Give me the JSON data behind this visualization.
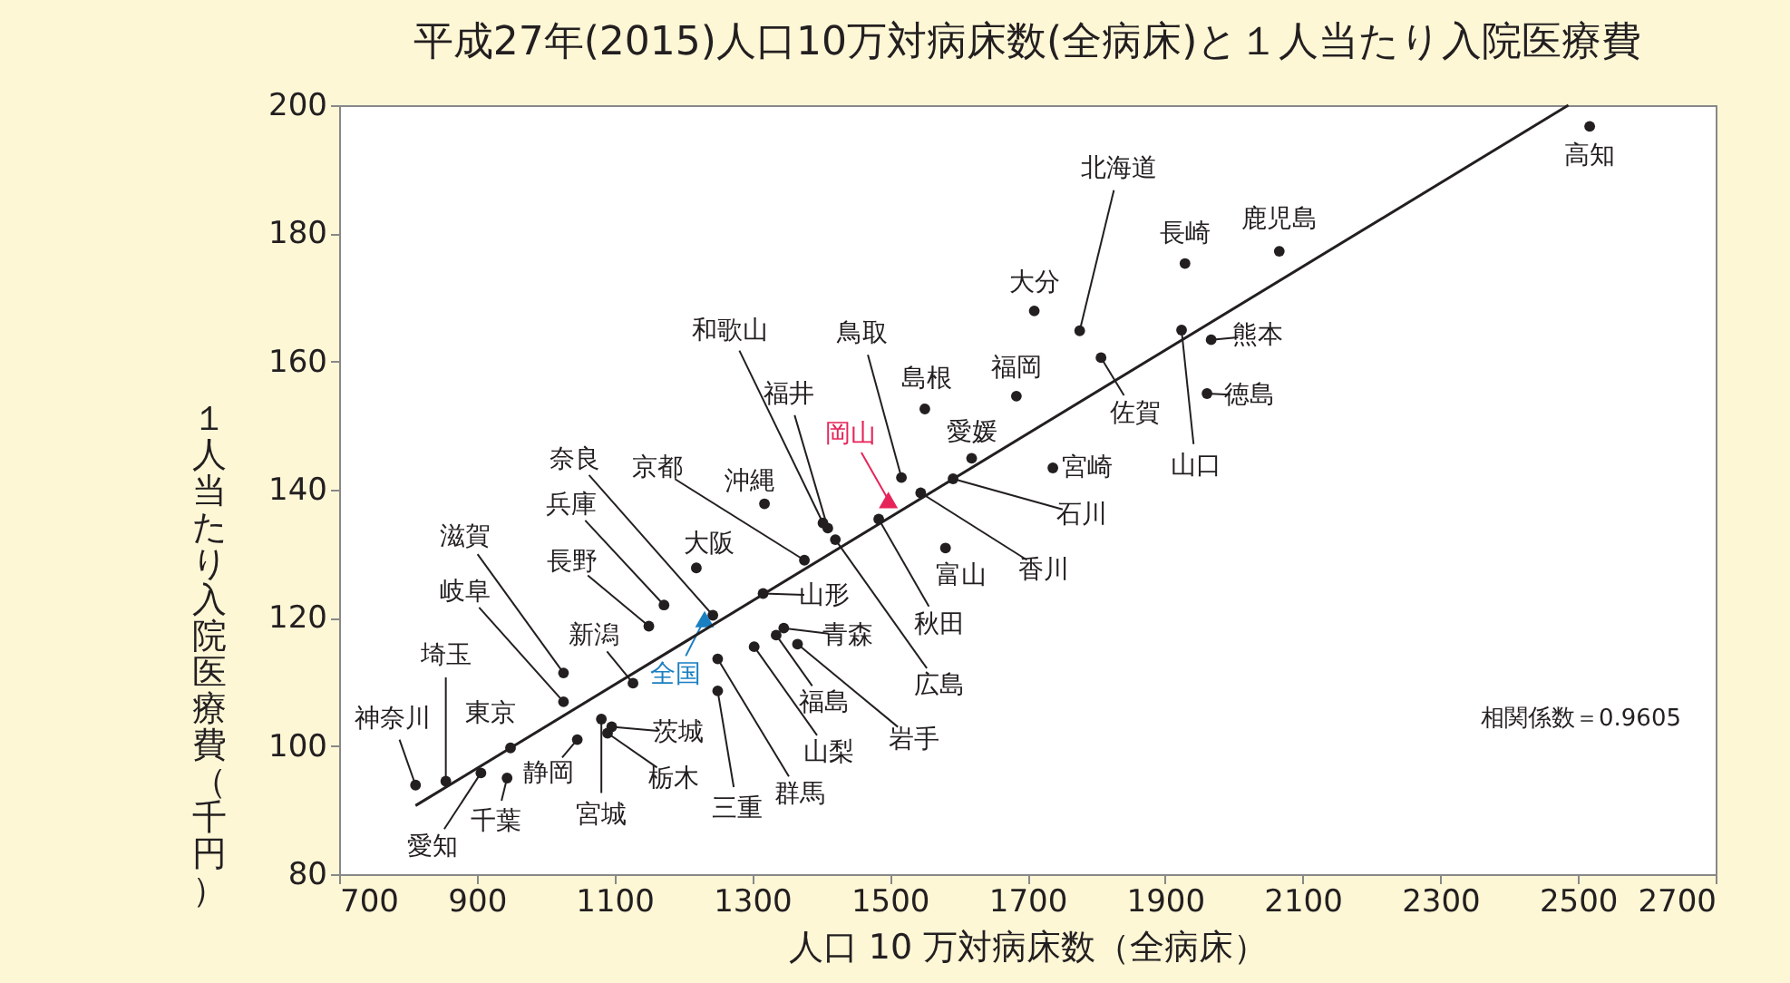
{
  "chart_data": {
    "type": "scatter",
    "title": "平成27年(2015)人口10万対病床数(全病床)と１人当たり入院医療費",
    "xlabel": "人口 10 万対病床数（全病床）",
    "ylabel": "１人当たり入院医療費（千円）",
    "xlim": [
      700,
      2700
    ],
    "xticks": [
      700,
      900,
      {
        "value": 1100,
        "label": "1100"
      },
      {
        "value": 1300,
        "label": "1300"
      },
      {
        "value": 1500,
        "label": "1500"
      },
      {
        "value": 1700,
        "label": "1700"
      },
      {
        "value": 1900,
        "label": "1900"
      },
      {
        "value": 2100,
        "label": "2100"
      },
      {
        "value": 2300,
        "label": "2300"
      },
      {
        "value": 2500,
        "label": "2500"
      },
      {
        "value": 2700,
        "label": "2700"
      }
    ],
    "ylim": [
      80,
      200
    ],
    "yticks": [
      80,
      100,
      120,
      140,
      160,
      180,
      200
    ],
    "grid": false,
    "annotations": [
      "相関係数＝0.9605"
    ],
    "series": [
      {
        "marker": "circle",
        "color": "#231f20",
        "x": [
          811,
          855,
          906,
          949,
          944,
          1026,
          1026,
          1046,
          1081,
          1096,
          1090,
          1127,
          1150,
          1172,
          1243,
          1219,
          1376,
          1318,
          1316,
          1250,
          1250,
          1303,
          1335,
          1346,
          1366,
          1403,
          1410,
          1421,
          1484,
          1517,
          1545,
          1592,
          1619,
          1551,
          1684,
          1581,
          1737,
          1710,
          1776,
          1807,
          1929,
          2066,
          1924,
          1967,
          1961,
          2517
        ],
        "values": [
          93.9,
          94.5,
          95.8,
          99.7,
          95.0,
          111.4,
          106.9,
          101.0,
          104.2,
          103.0,
          102.0,
          109.8,
          118.7,
          122.0,
          120.4,
          127.8,
          129.0,
          137.8,
          123.8,
          113.6,
          108.6,
          115.5,
          117.3,
          118.4,
          115.9,
          134.8,
          134.0,
          132.2,
          135.4,
          141.9,
          139.5,
          141.7,
          144.9,
          152.6,
          154.6,
          130.9,
          143.4,
          167.9,
          164.8,
          160.6,
          175.3,
          177.2,
          164.9,
          163.4,
          155.0,
          196.7
        ],
        "value_labels": [
          "神奈川",
          "埼玉",
          "愛知",
          "東京",
          "千葉",
          "滋賀",
          "岐阜",
          "静岡",
          "宮城",
          "茨城",
          "栃木",
          "新潟",
          "長野",
          "兵庫",
          "奈良",
          "大阪",
          "京都",
          "沖縄",
          "山形",
          "群馬",
          "三重",
          "山梨",
          "福島",
          "青森",
          "岩手",
          "和歌山",
          "福井",
          "広島",
          "秋田",
          "鳥取",
          "香川",
          "石川",
          "愛媛",
          "島根",
          "福岡",
          "富山",
          "宮崎",
          "大分",
          "北海道",
          "佐賀",
          "長崎",
          "鹿児島",
          "山口",
          "熊本",
          "徳島",
          "高知"
        ]
      },
      {
        "marker": "triangle",
        "name": "全国",
        "color": "#1a7fc1",
        "x": [
          1231
        ],
        "values": [
          119.8
        ]
      },
      {
        "marker": "triangle",
        "name": "岡山",
        "color": "#e6245a",
        "x": [
          1498
        ],
        "values": [
          138.4
        ]
      },
      {
        "type": "line",
        "color": "#231f20",
        "x": [
          811,
          2486
        ],
        "values": [
          90.7,
          200
        ]
      }
    ]
  }
}
